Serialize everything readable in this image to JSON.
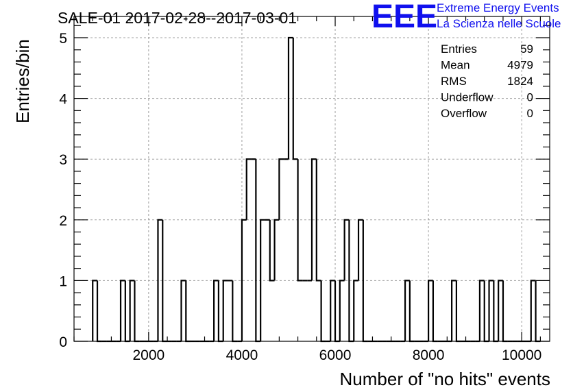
{
  "chart_data": {
    "type": "bar",
    "title": "SALE-01 2017-02-28--2017-03-01",
    "xlabel": "Number of \"no hits\" events",
    "ylabel": "Entries/bin",
    "xlim": [
      400,
      10600
    ],
    "ylim": [
      0,
      5.35
    ],
    "grid": true,
    "bin_width": 100,
    "bin_start": 800,
    "counts": [
      1,
      0,
      0,
      0,
      0,
      0,
      1,
      0,
      1,
      0,
      0,
      0,
      0,
      0,
      2,
      0,
      0,
      0,
      0,
      1,
      0,
      0,
      0,
      0,
      0,
      0,
      1,
      0,
      1,
      1,
      0,
      0,
      2,
      3,
      3,
      0,
      2,
      2,
      1,
      2,
      3,
      3,
      5,
      3,
      1,
      1,
      1,
      3,
      1,
      0,
      0,
      1,
      0,
      1,
      2,
      0,
      1,
      2,
      0,
      0,
      0,
      0,
      0,
      0,
      0,
      0,
      0,
      1,
      0,
      0,
      0,
      0,
      1,
      0,
      0,
      0,
      0,
      1,
      0,
      0,
      0,
      0,
      0,
      1,
      0,
      1,
      0,
      1,
      0,
      0,
      0,
      0,
      0,
      0,
      1,
      0
    ],
    "x_ticks": [
      {
        "value": 2000,
        "label": "2000"
      },
      {
        "value": 4000,
        "label": "4000"
      },
      {
        "value": 6000,
        "label": "6000"
      },
      {
        "value": 8000,
        "label": "8000"
      },
      {
        "value": 10000,
        "label": "10000"
      }
    ],
    "y_ticks": [
      {
        "value": 0,
        "label": "0"
      },
      {
        "value": 1,
        "label": "1"
      },
      {
        "value": 2,
        "label": "2"
      },
      {
        "value": 3,
        "label": "3"
      },
      {
        "value": 4,
        "label": "4"
      },
      {
        "value": 5,
        "label": "5"
      }
    ]
  },
  "stats": [
    {
      "label": "Entries",
      "value": "59"
    },
    {
      "label": "Mean",
      "value": "4979"
    },
    {
      "label": "RMS",
      "value": "1824"
    },
    {
      "label": "Underflow",
      "value": "0"
    },
    {
      "label": "Overflow",
      "value": "0"
    }
  ],
  "logo": {
    "mark": "EEE",
    "line1": "Extreme Energy Events",
    "line2": "La Scienza nelle Scuole",
    "color": "#1010ee"
  }
}
